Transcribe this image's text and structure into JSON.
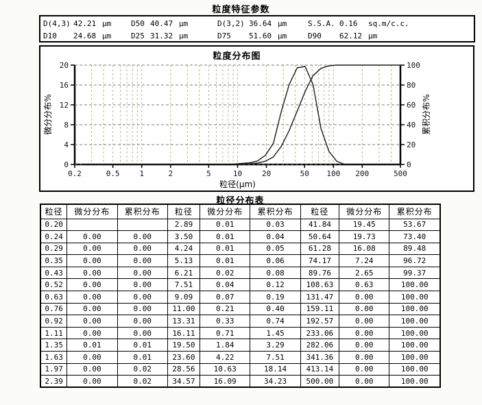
{
  "page": {
    "title": "粒度特征参数"
  },
  "params": {
    "rows": [
      [
        {
          "label": "D(4,3)",
          "value": "42.21",
          "unit": "μm"
        },
        {
          "label": "D50",
          "value": "40.47",
          "unit": "μm"
        },
        {
          "label": "D(3,2)",
          "value": "36.64",
          "unit": "μm"
        },
        {
          "label": "S.S.A.",
          "value": "0.16",
          "unit": "sq.m/c.c."
        }
      ],
      [
        {
          "label": "D10",
          "value": "24.68",
          "unit": "μm"
        },
        {
          "label": "D25",
          "value": "31.32",
          "unit": "μm"
        },
        {
          "label": "D75",
          "value": "51.60",
          "unit": "μm"
        },
        {
          "label": "D90",
          "value": "62.12",
          "unit": "μm"
        }
      ]
    ]
  },
  "chart_data": {
    "type": "line",
    "title": "粒度分布图",
    "xlabel": "粒径(μm)",
    "ylabel_left": "微分分布%",
    "ylabel_right": "累积分布%",
    "x_scale": "log",
    "xlim": [
      0.2,
      500
    ],
    "x_ticks": [
      0.2,
      0.5,
      1,
      2,
      5,
      10,
      20,
      50,
      100,
      200,
      500
    ],
    "ylim_left": [
      0,
      20
    ],
    "y_ticks_left": [
      0,
      4,
      8,
      12,
      16,
      20
    ],
    "ylim_right": [
      0,
      100
    ],
    "y_ticks_right": [
      0,
      20,
      40,
      60,
      80,
      100
    ],
    "grid": true,
    "grid_color_vertical": "#b9b97e",
    "grid_color_horizontal": "#7a7a7a",
    "curve_color": "#1b1b1b",
    "series": [
      {
        "name": "微分分布",
        "axis": "left",
        "x": [
          0.24,
          0.29,
          0.35,
          0.43,
          0.52,
          0.63,
          0.76,
          0.92,
          1.11,
          1.35,
          1.63,
          1.97,
          2.39,
          2.89,
          3.5,
          4.24,
          5.13,
          6.21,
          7.51,
          9.09,
          11.0,
          13.31,
          16.11,
          19.5,
          23.6,
          28.56,
          34.57,
          41.84,
          50.64,
          61.28,
          74.17,
          89.76,
          108.63,
          131.47,
          159.11,
          192.57,
          233.06,
          282.06,
          341.36,
          413.14,
          500.0
        ],
        "y": [
          0,
          0,
          0,
          0,
          0,
          0,
          0,
          0,
          0,
          0.01,
          0,
          0,
          0,
          0.01,
          0.01,
          0.01,
          0.01,
          0.02,
          0.04,
          0.07,
          0.21,
          0.33,
          0.71,
          1.84,
          4.22,
          10.63,
          16.09,
          19.45,
          19.73,
          16.08,
          7.24,
          2.65,
          0.63,
          0,
          0,
          0,
          0,
          0,
          0,
          0,
          0
        ]
      },
      {
        "name": "累积分布",
        "axis": "right",
        "x": [
          0.24,
          0.29,
          0.35,
          0.43,
          0.52,
          0.63,
          0.76,
          0.92,
          1.11,
          1.35,
          1.63,
          1.97,
          2.39,
          2.89,
          3.5,
          4.24,
          5.13,
          6.21,
          7.51,
          9.09,
          11.0,
          13.31,
          16.11,
          19.5,
          23.6,
          28.56,
          34.57,
          41.84,
          50.64,
          61.28,
          74.17,
          89.76,
          108.63,
          131.47,
          159.11,
          192.57,
          233.06,
          282.06,
          341.36,
          413.14,
          500.0
        ],
        "y": [
          0,
          0,
          0,
          0,
          0,
          0,
          0,
          0,
          0,
          0.01,
          0.01,
          0.02,
          0.02,
          0.03,
          0.04,
          0.05,
          0.06,
          0.08,
          0.12,
          0.19,
          0.4,
          0.74,
          1.45,
          3.29,
          7.51,
          18.14,
          34.23,
          53.67,
          73.4,
          89.48,
          96.72,
          99.37,
          100,
          100,
          100,
          100,
          100,
          100,
          100,
          100,
          100
        ]
      }
    ]
  },
  "table": {
    "title": "粒径分布表",
    "headers": [
      "粒径",
      "微分分布",
      "累积分布",
      "粒径",
      "微分分布",
      "累积分布",
      "粒径",
      "微分分布",
      "累积分布"
    ],
    "rows": [
      [
        "0.20",
        "",
        "",
        "2.89",
        "0.01",
        "0.03",
        "41.84",
        "19.45",
        "53.67"
      ],
      [
        "0.24",
        "0.00",
        "0.00",
        "3.50",
        "0.01",
        "0.04",
        "50.64",
        "19.73",
        "73.40"
      ],
      [
        "0.29",
        "0.00",
        "0.00",
        "4.24",
        "0.01",
        "0.05",
        "61.28",
        "16.08",
        "89.48"
      ],
      [
        "0.35",
        "0.00",
        "0.00",
        "5.13",
        "0.01",
        "0.06",
        "74.17",
        "7.24",
        "96.72"
      ],
      [
        "0.43",
        "0.00",
        "0.00",
        "6.21",
        "0.02",
        "0.08",
        "89.76",
        "2.65",
        "99.37"
      ],
      [
        "0.52",
        "0.00",
        "0.00",
        "7.51",
        "0.04",
        "0.12",
        "108.63",
        "0.63",
        "100.00"
      ],
      [
        "0.63",
        "0.00",
        "0.00",
        "9.09",
        "0.07",
        "0.19",
        "131.47",
        "0.00",
        "100.00"
      ],
      [
        "0.76",
        "0.00",
        "0.00",
        "11.00",
        "0.21",
        "0.40",
        "159.11",
        "0.00",
        "100.00"
      ],
      [
        "0.92",
        "0.00",
        "0.00",
        "13.31",
        "0.33",
        "0.74",
        "192.57",
        "0.00",
        "100.00"
      ],
      [
        "1.11",
        "0.00",
        "0.00",
        "16.11",
        "0.71",
        "1.45",
        "233.06",
        "0.00",
        "100.00"
      ],
      [
        "1.35",
        "0.01",
        "0.01",
        "19.50",
        "1.84",
        "3.29",
        "282.06",
        "0.00",
        "100.00"
      ],
      [
        "1.63",
        "0.00",
        "0.01",
        "23.60",
        "4.22",
        "7.51",
        "341.36",
        "0.00",
        "100.00"
      ],
      [
        "1.97",
        "0.00",
        "0.02",
        "28.56",
        "10.63",
        "18.14",
        "413.14",
        "0.00",
        "100.00"
      ],
      [
        "2.39",
        "0.00",
        "0.02",
        "34.57",
        "16.09",
        "34.23",
        "500.00",
        "0.00",
        "100.00"
      ]
    ]
  }
}
